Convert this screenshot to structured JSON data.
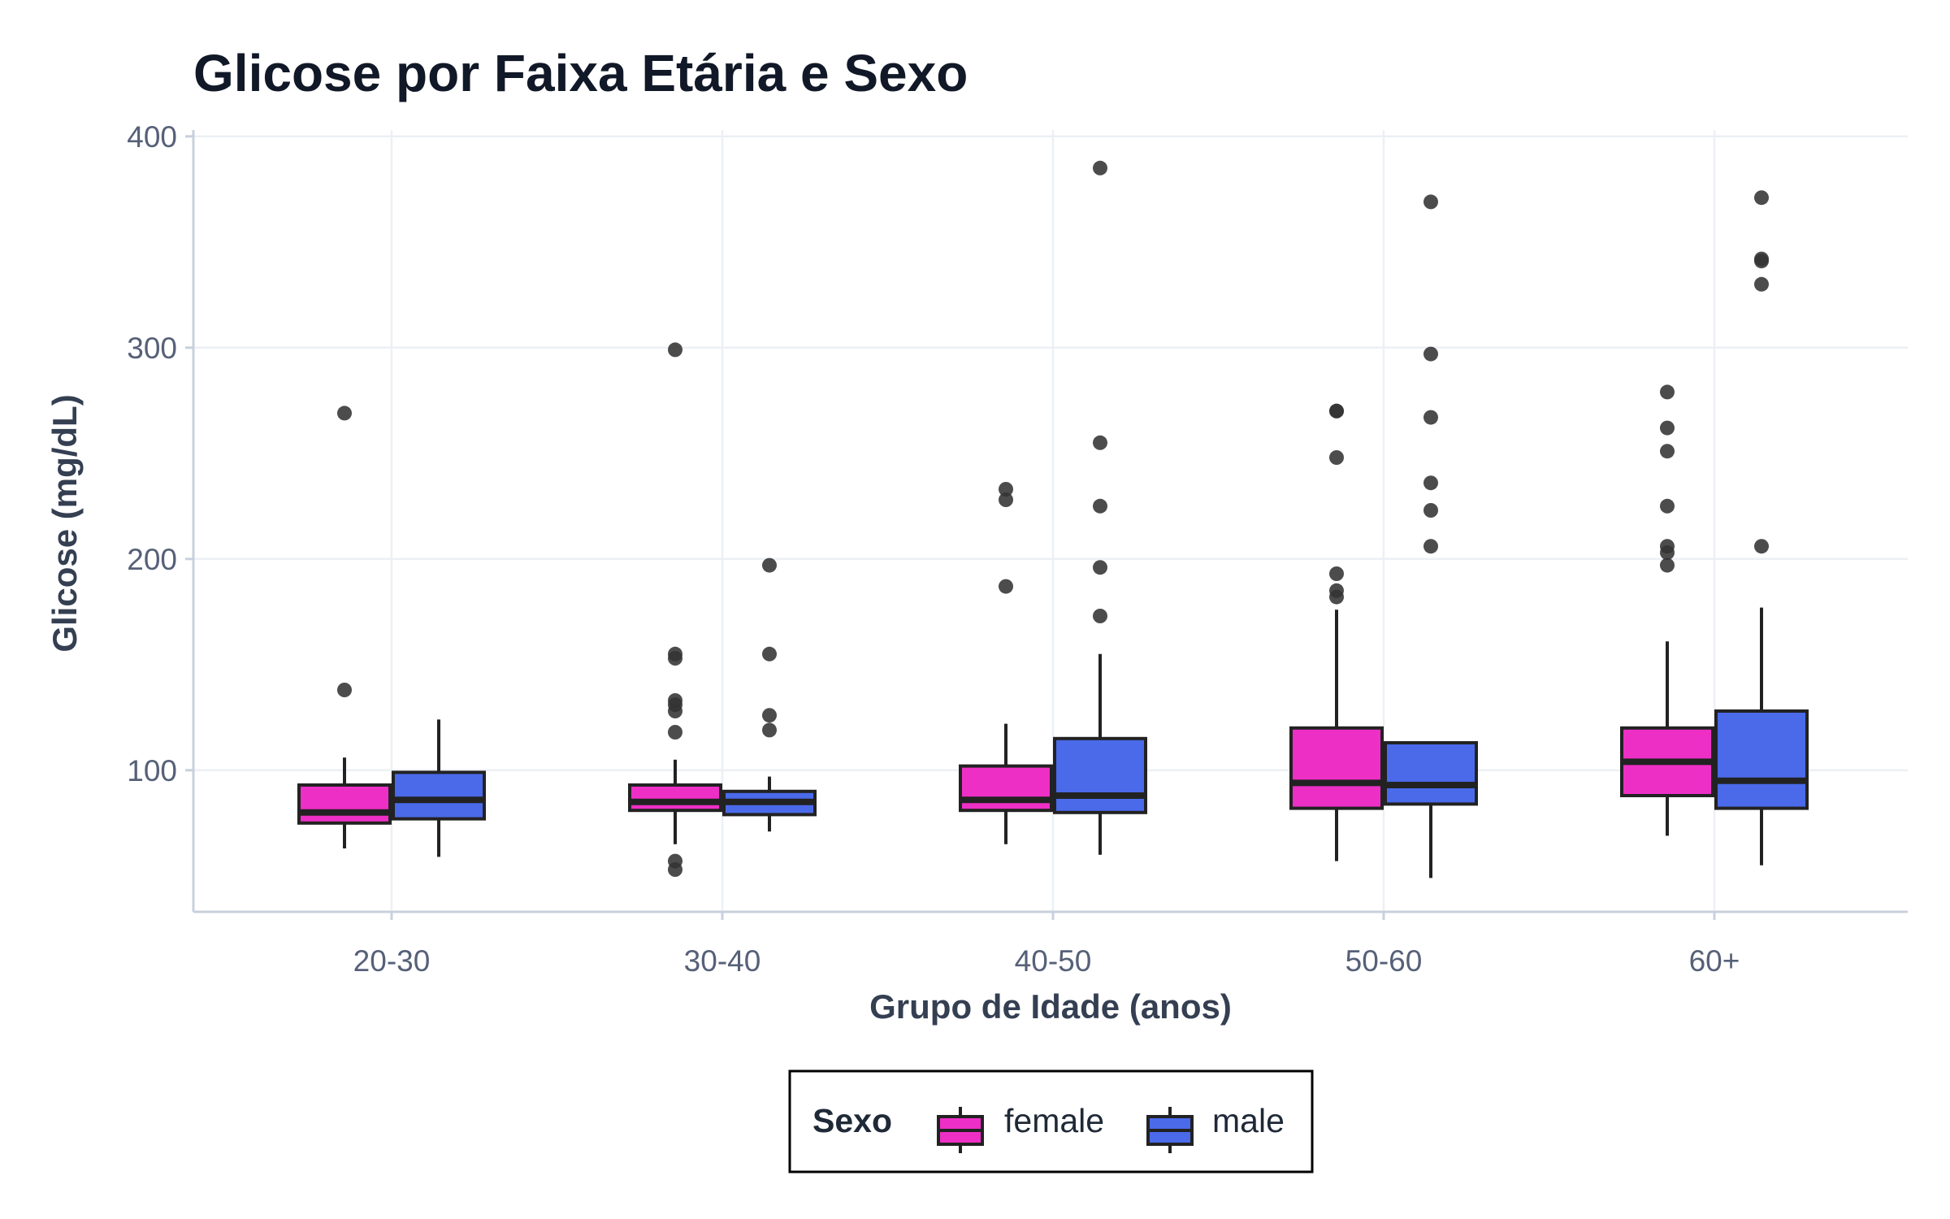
{
  "chart_data": {
    "type": "boxplot",
    "title": "Glicose por Faixa Etária e Sexo",
    "xlabel": "Grupo de Idade (anos)",
    "ylabel": "Glicose (mg/dL)",
    "categories": [
      "20-30",
      "30-40",
      "40-50",
      "50-60",
      "60+"
    ],
    "yticks": [
      100,
      200,
      300,
      400
    ],
    "ylim": [
      33,
      403
    ],
    "grid": true,
    "legend": {
      "title": "Sexo",
      "position": "bottom",
      "entries": [
        "female",
        "male"
      ]
    },
    "colors": {
      "female": "#ee2fc6",
      "male": "#4a6aea",
      "outline": "#222222",
      "outlier": "#333333"
    },
    "series": [
      {
        "name": "female",
        "boxes": [
          {
            "whisker_low": 63,
            "q1": 75,
            "median": 80,
            "q3": 93,
            "whisker_high": 106,
            "outliers": [
              138,
              269
            ]
          },
          {
            "whisker_low": 65,
            "q1": 81,
            "median": 85,
            "q3": 93,
            "whisker_high": 105,
            "outliers": [
              53,
              57,
              118,
              128,
              131,
              133,
              153,
              155,
              299
            ]
          },
          {
            "whisker_low": 65,
            "q1": 81,
            "median": 86,
            "q3": 102,
            "whisker_high": 122,
            "outliers": [
              187,
              228,
              233
            ]
          },
          {
            "whisker_low": 57,
            "q1": 82,
            "median": 94,
            "q3": 120,
            "whisker_high": 176,
            "outliers": [
              182,
              185,
              193,
              248,
              270,
              270
            ]
          },
          {
            "whisker_low": 69,
            "q1": 88,
            "median": 104,
            "q3": 120,
            "whisker_high": 161,
            "outliers": [
              197,
              203,
              206,
              225,
              251,
              262,
              279
            ]
          }
        ]
      },
      {
        "name": "male",
        "boxes": [
          {
            "whisker_low": 59,
            "q1": 77,
            "median": 86,
            "q3": 99,
            "whisker_high": 124,
            "outliers": []
          },
          {
            "whisker_low": 71,
            "q1": 79,
            "median": 85,
            "q3": 90,
            "whisker_high": 97,
            "outliers": [
              119,
              126,
              155,
              197
            ]
          },
          {
            "whisker_low": 60,
            "q1": 80,
            "median": 88,
            "q3": 115,
            "whisker_high": 155,
            "outliers": [
              173,
              196,
              225,
              255,
              385
            ]
          },
          {
            "whisker_low": 49,
            "q1": 84,
            "median": 93,
            "q3": 113,
            "whisker_high": 113,
            "outliers": [
              206,
              223,
              236,
              267,
              297,
              369
            ]
          },
          {
            "whisker_low": 55,
            "q1": 82,
            "median": 95,
            "q3": 128,
            "whisker_high": 177,
            "outliers": [
              206,
              330,
              341,
              342,
              371
            ]
          }
        ]
      }
    ]
  }
}
